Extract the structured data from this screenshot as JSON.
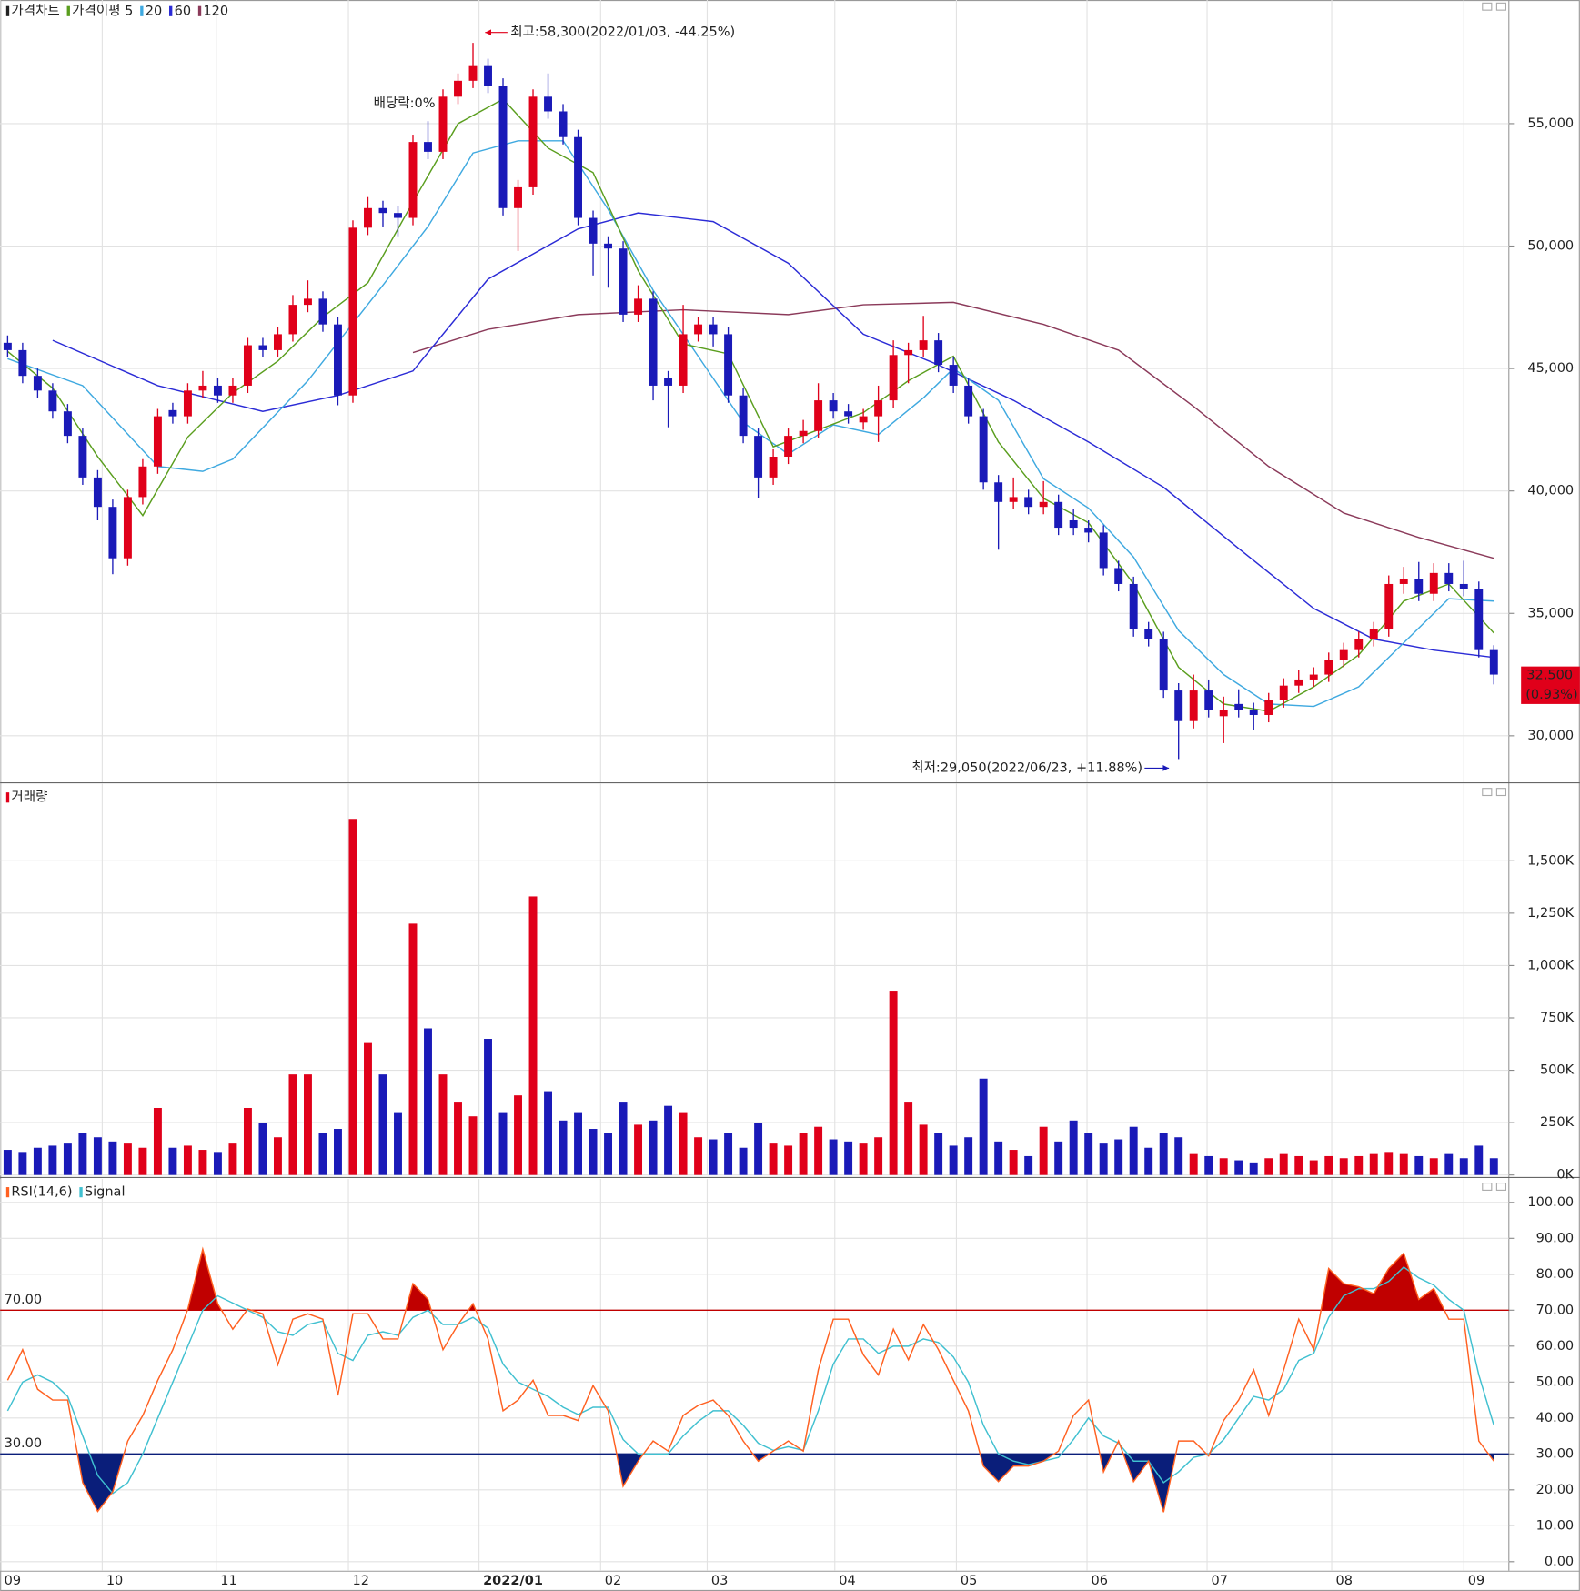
{
  "chart_data": [
    {
      "type": "candlestick",
      "title": "가격차트",
      "up_color": "#e0001a",
      "down_color": "#1a1ab8",
      "open": [
        46050,
        45750,
        44700,
        44100,
        43250,
        42250,
        40550,
        39350,
        37250,
        39750,
        41000,
        43300,
        43050,
        44100,
        44300,
        43900,
        44300,
        45950,
        45750,
        46400,
        47600,
        47850,
        46800,
        43900,
        50750,
        51550,
        51350,
        51150,
        54250,
        53850,
        56100,
        56750,
        57350,
        56550,
        51550,
        52400,
        56100,
        55500,
        54450,
        51150,
        50100,
        49900,
        47200,
        47850,
        44600,
        44300,
        46400,
        46800,
        46400,
        43900,
        42250,
        40550,
        41400,
        42250,
        42450,
        43700,
        43250,
        42800,
        43050,
        43700,
        45550,
        45750,
        46150,
        45150,
        44300,
        43050,
        40350,
        39550,
        39750,
        39350,
        39550,
        38800,
        38500,
        38300,
        36850,
        36200,
        34350,
        33950,
        31850,
        30600,
        31850,
        30800,
        31300,
        31050,
        30850,
        31450,
        32050,
        32300,
        32500,
        33100,
        33500,
        33950,
        34350,
        36200,
        36400,
        35800,
        36650,
        36200,
        36000,
        33500
      ],
      "high": [
        46350,
        46050,
        45000,
        44400,
        43550,
        42550,
        40850,
        39650,
        40050,
        41300,
        43350,
        43600,
        44400,
        44900,
        44600,
        44600,
        46250,
        46250,
        46700,
        48000,
        48600,
        48150,
        47100,
        51050,
        52000,
        51850,
        51650,
        54550,
        55100,
        56400,
        57050,
        58300,
        57650,
        56850,
        52700,
        56400,
        57050,
        55800,
        54750,
        51450,
        50400,
        50200,
        48400,
        48150,
        44900,
        47600,
        47100,
        47100,
        46700,
        44200,
        42550,
        41700,
        42550,
        42900,
        44400,
        44000,
        43550,
        43350,
        44300,
        46150,
        46050,
        47150,
        46450,
        45450,
        44600,
        43350,
        40650,
        40550,
        40050,
        40400,
        39850,
        39250,
        38800,
        38600,
        37150,
        36500,
        34650,
        34250,
        32150,
        32500,
        32300,
        31600,
        31900,
        31350,
        31750,
        32350,
        32700,
        32800,
        33400,
        33800,
        34250,
        34650,
        36550,
        36900,
        37100,
        37050,
        37050,
        37150,
        36300,
        33700
      ],
      "low": [
        45450,
        44400,
        43800,
        42950,
        41950,
        40250,
        38800,
        36600,
        36950,
        39450,
        40700,
        42750,
        42750,
        43800,
        43600,
        43600,
        44000,
        45450,
        45450,
        46100,
        47300,
        46500,
        43500,
        43600,
        50450,
        50800,
        50400,
        50850,
        53550,
        53550,
        55800,
        56450,
        56250,
        51250,
        49800,
        52100,
        55200,
        54150,
        50850,
        48800,
        48300,
        46900,
        46900,
        43700,
        42600,
        44000,
        46100,
        45900,
        43600,
        41950,
        39700,
        40250,
        41100,
        41950,
        42150,
        42950,
        42750,
        42500,
        42000,
        43400,
        44400,
        45450,
        44850,
        44000,
        42750,
        40050,
        37600,
        39250,
        39050,
        39050,
        38200,
        38200,
        37900,
        36550,
        35900,
        34050,
        33650,
        31550,
        29050,
        30300,
        30750,
        29700,
        30750,
        30250,
        30550,
        31150,
        31750,
        32000,
        32200,
        32800,
        33200,
        33650,
        34050,
        35800,
        35500,
        35500,
        35900,
        35700,
        33200,
        32100
      ],
      "close": [
        45750,
        44700,
        44100,
        43250,
        42250,
        40550,
        39350,
        37250,
        39750,
        41000,
        43050,
        43050,
        44100,
        44300,
        43900,
        44300,
        45950,
        45750,
        46400,
        47600,
        47850,
        46800,
        43900,
        50750,
        51550,
        51350,
        51150,
        54250,
        53850,
        56100,
        56750,
        57350,
        56550,
        51550,
        52400,
        56100,
        55500,
        54450,
        51150,
        50100,
        49900,
        47200,
        47850,
        44300,
        44300,
        46400,
        46800,
        46400,
        43900,
        42250,
        40550,
        41400,
        42250,
        42450,
        43700,
        43250,
        43050,
        43050,
        43700,
        45550,
        45750,
        46150,
        45150,
        44300,
        43050,
        40350,
        39550,
        39750,
        39350,
        39550,
        38500,
        38500,
        38300,
        36850,
        36200,
        34350,
        33950,
        31850,
        30600,
        31850,
        31050,
        31050,
        31050,
        30850,
        31450,
        32050,
        32300,
        32500,
        33100,
        33500,
        33950,
        34350,
        36200,
        36400,
        35800,
        36650,
        36200,
        36000,
        33500,
        32500
      ],
      "lines": [
        {
          "name": "가격이평 5",
          "color": "#5a9e1e",
          "x": [
            0,
            3,
            6,
            9,
            12,
            15,
            18,
            21,
            24,
            27,
            30,
            33,
            36,
            39,
            42,
            45,
            48,
            51,
            54,
            57,
            60,
            63,
            66,
            69,
            72,
            75,
            78,
            81,
            84,
            87,
            90,
            93,
            96,
            99
          ],
          "values": [
            45700,
            44200,
            41400,
            39000,
            42200,
            44000,
            45300,
            47100,
            48500,
            51800,
            55000,
            56000,
            54000,
            53000,
            49000,
            46000,
            45600,
            41800,
            42500,
            43200,
            44500,
            45500,
            42000,
            39700,
            38700,
            36200,
            32800,
            31300,
            31000,
            32000,
            33300,
            35500,
            36200,
            34200
          ]
        },
        {
          "name": "20",
          "color": "#3fa9e0",
          "x": [
            0,
            5,
            10,
            13,
            15,
            20,
            25,
            28,
            31,
            34,
            37,
            40,
            43,
            46,
            49,
            52,
            55,
            58,
            61,
            63,
            66,
            69,
            72,
            75,
            78,
            81,
            84,
            87,
            90,
            93,
            96,
            99
          ],
          "values": [
            45400,
            44300,
            41000,
            40800,
            41300,
            44500,
            48400,
            50800,
            53800,
            54300,
            54300,
            51500,
            48200,
            45500,
            42800,
            41500,
            42700,
            42300,
            43800,
            45000,
            43700,
            40500,
            39300,
            37300,
            34300,
            32500,
            31300,
            31200,
            32000,
            33800,
            35600,
            35500
          ]
        },
        {
          "name": "60",
          "color": "#2b2bd6",
          "x": [
            3,
            10,
            17,
            22,
            27,
            32,
            38,
            42,
            47,
            52,
            57,
            62,
            67,
            72,
            77,
            82,
            87,
            91,
            95,
            99
          ],
          "values": [
            46150,
            44300,
            43250,
            43900,
            44900,
            48650,
            50700,
            51350,
            51000,
            49300,
            46400,
            45150,
            43700,
            42000,
            40150,
            37650,
            35200,
            33950,
            33500,
            33200
          ]
        },
        {
          "name": "120",
          "color": "#8b3a5a",
          "x": [
            27,
            32,
            38,
            45,
            52,
            57,
            63,
            69,
            74,
            79,
            84,
            89,
            94,
            99
          ],
          "values": [
            45650,
            46600,
            47200,
            47400,
            47200,
            47600,
            47700,
            46800,
            45750,
            43450,
            41000,
            39100,
            38100,
            37250
          ]
        }
      ],
      "ylim": [
        28100,
        60050
      ],
      "yticks": [
        {
          "value": 30000,
          "label": "30,000"
        },
        {
          "value": 35000,
          "label": "35,000"
        },
        {
          "value": 40000,
          "label": "40,000"
        },
        {
          "value": 45000,
          "label": "45,000"
        },
        {
          "value": 50000,
          "label": "50,000"
        },
        {
          "value": 55000,
          "label": "55,000"
        }
      ],
      "xlim": [
        -0.5,
        100
      ],
      "xticks": [
        {
          "value": -0.5,
          "label": "09"
        },
        {
          "value": 6.3,
          "label": "10"
        },
        {
          "value": 13.9,
          "label": "11"
        },
        {
          "value": 22.7,
          "label": "12"
        },
        {
          "value": 31.4,
          "label": "2022/01",
          "bold": true
        },
        {
          "value": 39.5,
          "label": "02"
        },
        {
          "value": 46.6,
          "label": "03"
        },
        {
          "value": 55.1,
          "label": "04"
        },
        {
          "value": 63.2,
          "label": "05"
        },
        {
          "value": 71.9,
          "label": "06"
        },
        {
          "value": 79.9,
          "label": "07"
        },
        {
          "value": 88.2,
          "label": "08"
        },
        {
          "value": 97,
          "label": "09"
        }
      ],
      "annotations": [
        {
          "text": "최고:58,300(2022/01/03, -44.25%)",
          "color": "#e0001a"
        },
        {
          "text": "배당락:0%",
          "color": "#2f6b12"
        },
        {
          "text": "최저:29,050(2022/06/23, +11.88%)",
          "color": "#1a1ab8"
        }
      ],
      "last_label": [
        "32,500",
        "(0.93%)"
      ]
    },
    {
      "type": "bar",
      "title": "거래량",
      "color": "#e0001a",
      "values": [
        120000,
        110000,
        130000,
        140000,
        150000,
        200000,
        180000,
        160000,
        150000,
        130000,
        320000,
        130000,
        140000,
        120000,
        110000,
        150000,
        320000,
        250000,
        180000,
        480000,
        480000,
        200000,
        220000,
        1700000,
        630000,
        480000,
        300000,
        1200000,
        700000,
        480000,
        350000,
        280000,
        650000,
        300000,
        380000,
        1330000,
        400000,
        260000,
        300000,
        220000,
        200000,
        350000,
        240000,
        260000,
        330000,
        300000,
        180000,
        170000,
        200000,
        130000,
        250000,
        150000,
        140000,
        200000,
        230000,
        170000,
        160000,
        150000,
        180000,
        880000,
        350000,
        240000,
        200000,
        140000,
        180000,
        460000,
        160000,
        120000,
        90000,
        230000,
        160000,
        260000,
        200000,
        150000,
        170000,
        230000,
        130000,
        200000,
        180000,
        100000,
        90000,
        80000,
        70000,
        60000,
        80000,
        100000,
        90000,
        70000,
        90000,
        80000,
        90000,
        100000,
        110000,
        100000,
        90000,
        80000,
        100000,
        80000,
        140000,
        80000
      ],
      "ylim": [
        0,
        1870000
      ],
      "yticks": [
        {
          "value": 0,
          "label": "0K"
        },
        {
          "value": 250000,
          "label": "250K"
        },
        {
          "value": 500000,
          "label": "500K"
        },
        {
          "value": 750000,
          "label": "750K"
        },
        {
          "value": 1000000,
          "label": "1,000K"
        },
        {
          "value": 1250000,
          "label": "1,250K"
        },
        {
          "value": 1500000,
          "label": "1,500K"
        }
      ]
    },
    {
      "type": "line",
      "series": [
        {
          "name": "RSI(14,6)",
          "color": "#ff6020",
          "values": [
            50.5,
            59,
            48,
            45,
            45,
            22,
            14,
            19.5,
            33.6,
            40.7,
            50.5,
            59,
            70.3,
            87,
            71.8,
            64.7,
            70.3,
            69,
            54.8,
            67.5,
            69,
            67.5,
            46.3,
            69,
            69,
            62,
            62,
            77.4,
            73,
            59,
            66,
            71.8,
            62,
            42,
            45,
            50.5,
            40.7,
            40.7,
            39.3,
            49,
            42,
            21,
            28,
            33.6,
            30.8,
            40.7,
            43.5,
            45,
            40.7,
            33.6,
            28,
            30.8,
            33.6,
            30.8,
            53.4,
            67.5,
            67.5,
            57.6,
            52,
            64.7,
            56.2,
            66,
            59,
            50.5,
            42,
            26.6,
            22.3,
            26.6,
            26.6,
            28,
            30.8,
            40.7,
            45,
            25,
            33.6,
            22.3,
            28,
            13.8,
            33.6,
            33.6,
            29.4,
            39.3,
            45,
            53.4,
            40.7,
            53.4,
            67.5,
            59,
            81.6,
            77.4,
            76.5,
            74.6,
            81.6,
            85.9,
            73,
            76,
            67.5,
            67.5,
            33.6,
            28
          ]
        },
        {
          "name": "Signal",
          "color": "#40c0d0",
          "values": [
            42,
            50,
            52,
            50,
            46,
            35,
            24,
            19,
            22,
            30,
            40,
            50,
            60,
            70,
            74,
            72,
            70,
            68,
            64,
            63,
            66,
            67,
            58,
            56,
            63,
            64,
            63,
            68,
            70,
            66,
            66,
            68,
            65,
            55,
            50,
            48,
            46,
            43,
            41,
            43,
            43,
            34,
            30,
            30,
            30,
            35,
            39,
            42,
            42,
            38,
            33,
            31,
            32,
            31,
            42,
            55,
            62,
            62,
            58,
            60,
            60,
            62,
            61,
            57,
            50,
            38,
            30,
            28,
            27,
            28,
            29,
            34,
            40,
            35,
            33,
            28,
            28,
            22,
            25,
            29,
            30,
            34,
            40,
            46,
            45,
            48,
            56,
            58,
            68,
            74,
            76,
            76,
            78,
            82,
            79,
            77,
            73,
            70,
            52,
            38
          ]
        }
      ],
      "reference_lines": [
        {
          "value": 70,
          "label": "70.00",
          "color": "#c00000"
        },
        {
          "value": 30,
          "label": "30.00",
          "color": "#0a1e7a"
        }
      ],
      "ylim": [
        -2.5,
        106.5
      ],
      "yticks": [
        {
          "value": 0,
          "label": "0.00"
        },
        {
          "value": 10,
          "label": "10.00"
        },
        {
          "value": 20,
          "label": "20.00"
        },
        {
          "value": 30,
          "label": "30.00"
        },
        {
          "value": 40,
          "label": "40.00"
        },
        {
          "value": 50,
          "label": "50.00"
        },
        {
          "value": 60,
          "label": "60.00"
        },
        {
          "value": 70,
          "label": "70.00"
        },
        {
          "value": 80,
          "label": "80.00"
        },
        {
          "value": 90,
          "label": "90.00"
        },
        {
          "value": 100,
          "label": "100.00"
        }
      ]
    }
  ]
}
